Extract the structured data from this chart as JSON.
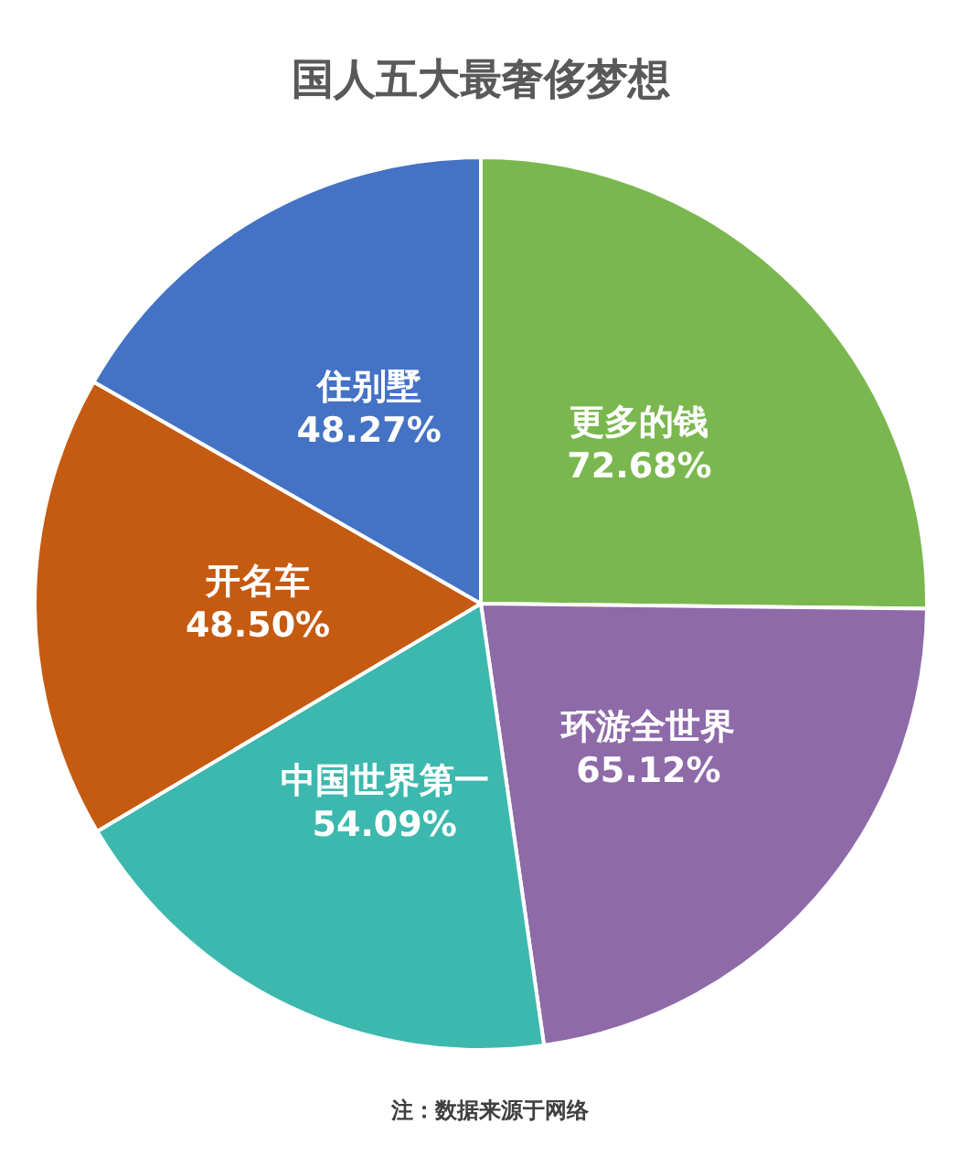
{
  "chart_data": {
    "type": "pie",
    "title": "国人五大最奢侈梦想",
    "categories": [
      "更多的钱",
      "环游全世界",
      "中国世界第一",
      "开名车",
      "住别墅"
    ],
    "values": [
      72.68,
      65.12,
      54.09,
      48.5,
      48.27
    ],
    "value_labels": [
      "72.68%",
      "65.12%",
      "54.09%",
      "48.50%",
      "48.27%"
    ],
    "colors": [
      "#7ab84f",
      "#8e6aa9",
      "#3db8ae",
      "#c55a11",
      "#4472c4"
    ],
    "annotations": [
      "注：数据来源于网络"
    ]
  }
}
